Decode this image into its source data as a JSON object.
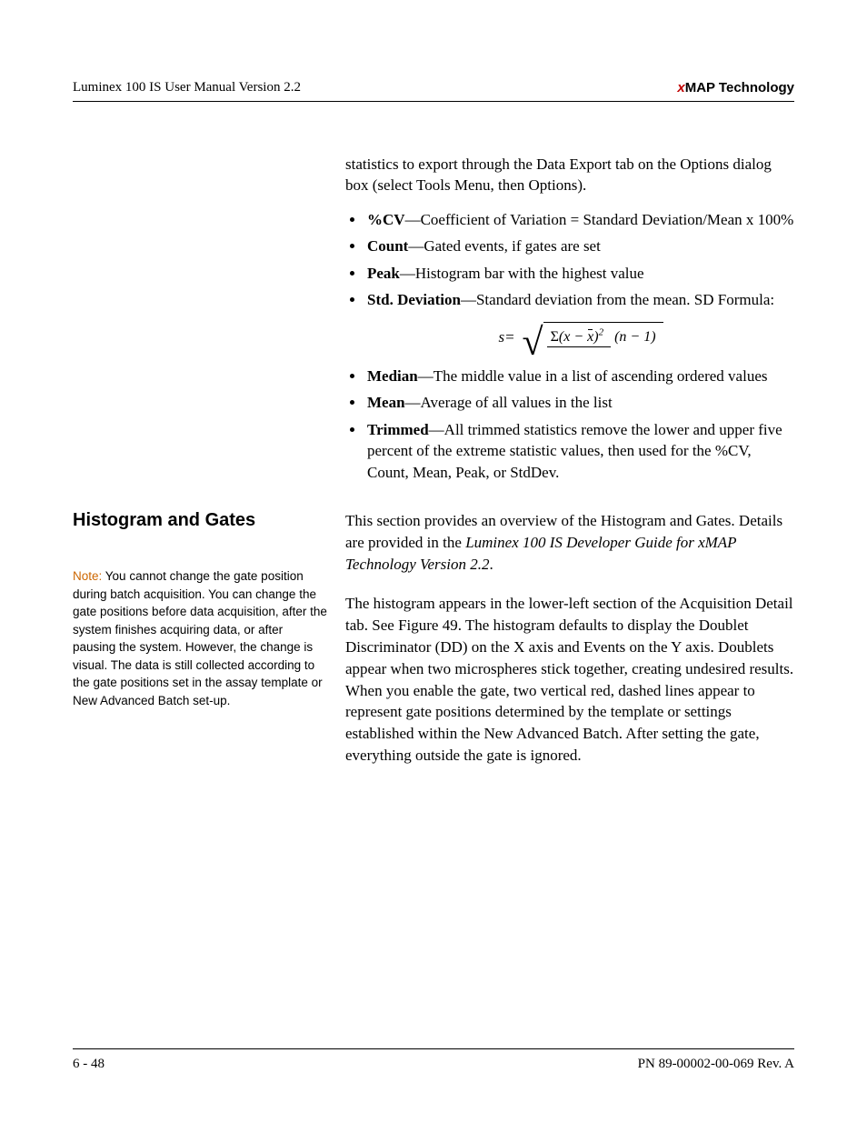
{
  "header": {
    "left": "Luminex 100 IS User Manual Version 2.2",
    "right_prefix": "x",
    "right_rest": "MAP Technology"
  },
  "intro": "statistics to export through the Data Export tab on the Options dialog box (select Tools Menu, then Options).",
  "definitions": {
    "cv": {
      "term": "%CV",
      "text": "—Coefficient of Variation = Standard Deviation/Mean x 100%"
    },
    "count": {
      "term": "Count",
      "text": "—Gated events, if gates are set"
    },
    "peak": {
      "term": "Peak",
      "text": "—Histogram bar with the highest value"
    },
    "std": {
      "term": "Std. Deviation",
      "text": "—Standard deviation from the mean. SD Formula:"
    },
    "median": {
      "term": "Median",
      "text": "—The middle value in a list of ascending ordered values"
    },
    "mean": {
      "term": "Mean",
      "text": "—Average of all values in the list"
    },
    "trimmed": {
      "term": "Trimmed",
      "text": "—All trimmed statistics remove the lower and upper five percent of the extreme statistic values, then used for the %CV, Count, Mean, Peak, or StdDev."
    }
  },
  "formula": {
    "lhs": "s=",
    "sigma": "Σ",
    "x": "x",
    "minus": " − ",
    "xbar": "x",
    "exp": "2",
    "denom": "(n − 1)"
  },
  "section": {
    "heading": "Histogram and Gates",
    "note_label": "Note: ",
    "note_text": "You cannot change the gate position during batch acquisition. You can change the gate positions before data acquisition, after the system finishes acquiring data, or after pausing the system. However, the change is visual. The data is still collected according to the gate positions set in the assay template or New Advanced Batch set-up.",
    "para1_a": "This section provides an overview of the Histogram and Gates. Details are provided in the ",
    "para1_ital": "Luminex 100 IS Developer Guide for xMAP Technology Version 2.2",
    "para1_b": ".",
    "para2": "The histogram appears in the lower-left section of the Acquisition Detail tab. See Figure 49. The histogram defaults to display the Doublet Discriminator (DD) on the X axis and Events on the Y axis. Doublets appear when two microspheres stick together, creating undesired results. When you enable the gate, two vertical red, dashed lines appear to represent gate positions determined by the template or settings established within the New Advanced Batch. After setting the gate, everything outside the gate is ignored."
  },
  "footer": {
    "left": "6 - 48",
    "right": "PN 89-00002-00-069 Rev. A"
  }
}
